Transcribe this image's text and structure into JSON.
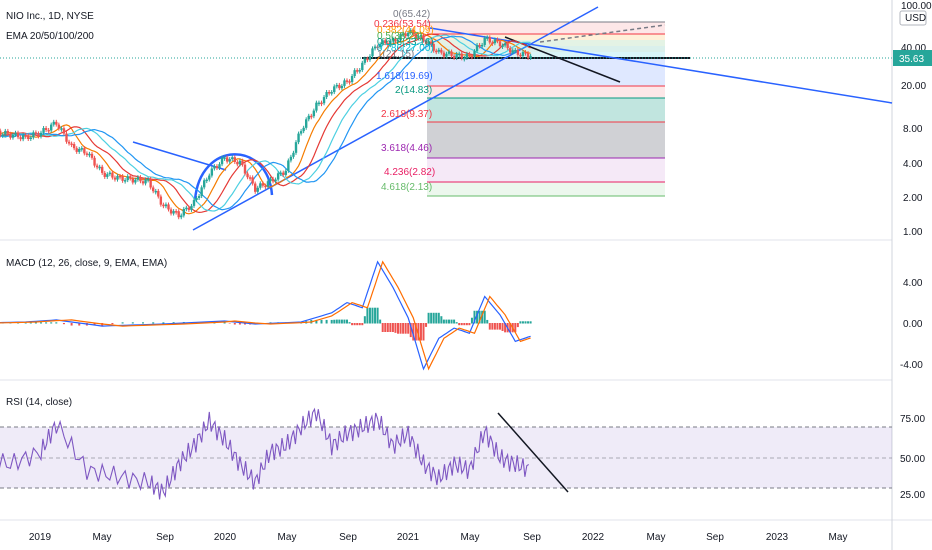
{
  "chart_data": {
    "type": "line",
    "symbol": "NIO Inc., 1D, NYSE",
    "indicator_label": "EMA 20/50/100/200",
    "price_axis_unit": "USD",
    "price_axis_ticks": [
      "100.00",
      "40.00",
      "20.00",
      "8.00",
      "4.00",
      "2.00",
      "1.00"
    ],
    "price_scale": "log",
    "current_price": "35.63",
    "current_price_color": "#26a69a",
    "time_ticks": [
      "2019",
      "May",
      "Sep",
      "2020",
      "May",
      "Sep",
      "2021",
      "May",
      "Sep",
      "2022",
      "May",
      "Sep",
      "2023",
      "May"
    ],
    "price_series": [
      {
        "date": "2018-09",
        "close": 7.0
      },
      {
        "date": "2018-10",
        "close": 7.6
      },
      {
        "date": "2018-11",
        "close": 7.2
      },
      {
        "date": "2018-12",
        "close": 6.8
      },
      {
        "date": "2019-01",
        "close": 7.5
      },
      {
        "date": "2019-02",
        "close": 9.2
      },
      {
        "date": "2019-03",
        "close": 5.6
      },
      {
        "date": "2019-04",
        "close": 5.0
      },
      {
        "date": "2019-05",
        "close": 3.3
      },
      {
        "date": "2019-06",
        "close": 3.0
      },
      {
        "date": "2019-07",
        "close": 2.9
      },
      {
        "date": "2019-08",
        "close": 2.8
      },
      {
        "date": "2019-09",
        "close": 1.7
      },
      {
        "date": "2019-10",
        "close": 1.4
      },
      {
        "date": "2019-11",
        "close": 1.8
      },
      {
        "date": "2019-12",
        "close": 3.3
      },
      {
        "date": "2020-01",
        "close": 4.5
      },
      {
        "date": "2020-02",
        "close": 4.1
      },
      {
        "date": "2020-03",
        "close": 2.4
      },
      {
        "date": "2020-04",
        "close": 2.8
      },
      {
        "date": "2020-05",
        "close": 3.5
      },
      {
        "date": "2020-06",
        "close": 8.0
      },
      {
        "date": "2020-07",
        "close": 13.0
      },
      {
        "date": "2020-08",
        "close": 18.0
      },
      {
        "date": "2020-09",
        "close": 21.0
      },
      {
        "date": "2020-10",
        "close": 30.0
      },
      {
        "date": "2020-11",
        "close": 45.0
      },
      {
        "date": "2020-12",
        "close": 48.0
      },
      {
        "date": "2021-01",
        "close": 58.0
      },
      {
        "date": "2021-02",
        "close": 50.0
      },
      {
        "date": "2021-03",
        "close": 38.0
      },
      {
        "date": "2021-04",
        "close": 36.0
      },
      {
        "date": "2021-05",
        "close": 35.0
      },
      {
        "date": "2021-06",
        "close": 50.0
      },
      {
        "date": "2021-07",
        "close": 46.0
      },
      {
        "date": "2021-08",
        "close": 38.0
      },
      {
        "date": "2021-09",
        "close": 35.63
      }
    ],
    "fib_levels": [
      {
        "label": "0(65.42)",
        "color": "#787b86"
      },
      {
        "label": "0.236(53.54)",
        "color": "#f23645"
      },
      {
        "label": "0.382(44.09)",
        "color": "#ff9800"
      },
      {
        "label": "0.5(38.23)",
        "color": "#4caf50"
      },
      {
        "label": "0.618(33.16)",
        "color": "#089981"
      },
      {
        "label": "0.786(27.00)",
        "color": "#00bcd4"
      },
      {
        "label": "1(21.15)",
        "color": "#787b86"
      },
      {
        "label": "1.618(19.69)",
        "color": "#2962ff"
      },
      {
        "label": "2(14.83)",
        "color": "#089981"
      },
      {
        "label": "2.618(9.37)",
        "color": "#f23645"
      },
      {
        "label": "3.618(4.46)",
        "color": "#9c27b0"
      },
      {
        "label": "4.236(2.82)",
        "color": "#e91e63"
      },
      {
        "label": "4.618(2.13)",
        "color": "#66bb6a"
      }
    ],
    "macd": {
      "label": "MACD (12, 26, close, 9, EMA, EMA)",
      "ticks": [
        "4.00",
        "0.00",
        "-4.00"
      ],
      "points": [
        [
          "2018-09",
          0.0
        ],
        [
          "2018-12",
          0.1
        ],
        [
          "2019-02",
          0.3
        ],
        [
          "2019-05",
          -0.3
        ],
        [
          "2019-09",
          -0.1
        ],
        [
          "2020-01",
          0.2
        ],
        [
          "2020-03",
          -0.1
        ],
        [
          "2020-06",
          0.1
        ],
        [
          "2020-08",
          1.0
        ],
        [
          "2020-09",
          2.0
        ],
        [
          "2020-10",
          1.5
        ],
        [
          "2020-11",
          6.0
        ],
        [
          "2020-12",
          3.5
        ],
        [
          "2021-01",
          0.5
        ],
        [
          "2021-02",
          -4.5
        ],
        [
          "2021-03",
          -1.5
        ],
        [
          "2021-04",
          -0.5
        ],
        [
          "2021-05",
          -1.0
        ],
        [
          "2021-06",
          2.6
        ],
        [
          "2021-07",
          0.8
        ],
        [
          "2021-08",
          -1.8
        ],
        [
          "2021-09",
          -1.3
        ]
      ]
    },
    "rsi": {
      "label": "RSI (14, close)",
      "ticks": [
        "75.00",
        "50.00",
        "25.00"
      ],
      "points": [
        [
          "2018-09",
          50
        ],
        [
          "2018-11",
          45
        ],
        [
          "2019-01",
          55
        ],
        [
          "2019-02",
          78
        ],
        [
          "2019-04",
          40
        ],
        [
          "2019-06",
          35
        ],
        [
          "2019-08",
          30
        ],
        [
          "2019-09",
          22
        ],
        [
          "2019-10",
          45
        ],
        [
          "2019-11",
          60
        ],
        [
          "2019-12",
          80
        ],
        [
          "2020-01",
          65
        ],
        [
          "2020-02",
          45
        ],
        [
          "2020-03",
          30
        ],
        [
          "2020-04",
          55
        ],
        [
          "2020-05",
          60
        ],
        [
          "2020-06",
          75
        ],
        [
          "2020-07",
          88
        ],
        [
          "2020-08",
          60
        ],
        [
          "2020-09",
          70
        ],
        [
          "2020-10",
          75
        ],
        [
          "2020-11",
          82
        ],
        [
          "2020-12",
          60
        ],
        [
          "2021-01",
          70
        ],
        [
          "2021-02",
          45
        ],
        [
          "2021-03",
          33
        ],
        [
          "2021-04",
          45
        ],
        [
          "2021-05",
          40
        ],
        [
          "2021-06",
          72
        ],
        [
          "2021-07",
          50
        ],
        [
          "2021-08",
          45
        ],
        [
          "2021-09",
          40
        ]
      ]
    },
    "colors": {
      "up": "#26a69a",
      "down": "#ef5350",
      "macd": "#2962ff",
      "signal": "#ff6d00",
      "rsi": "#7e57c2",
      "rsi_band": "#7e57c2",
      "trend": "#2962ff",
      "ema": [
        "#f57c00",
        "#e53935",
        "#4dd0e1",
        "#2196f3"
      ]
    }
  }
}
